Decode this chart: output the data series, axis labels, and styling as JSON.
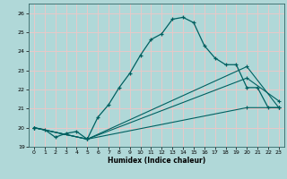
{
  "title": "",
  "xlabel": "Humidex (Indice chaleur)",
  "bg_color": "#b0d8d8",
  "grid_color": "#e8c8c8",
  "line_color": "#006060",
  "xlim": [
    -0.5,
    23.5
  ],
  "ylim": [
    19,
    26.5
  ],
  "xticks": [
    0,
    1,
    2,
    3,
    4,
    5,
    6,
    7,
    8,
    9,
    10,
    11,
    12,
    13,
    14,
    15,
    16,
    17,
    18,
    19,
    20,
    21,
    22,
    23
  ],
  "yticks": [
    19,
    20,
    21,
    22,
    23,
    24,
    25,
    26
  ],
  "line1_x": [
    0,
    1,
    2,
    3,
    4,
    5,
    6,
    7,
    8,
    9,
    10,
    11,
    12,
    13,
    14,
    15,
    16,
    17,
    18,
    19,
    20,
    21,
    22,
    23
  ],
  "line1_y": [
    20.0,
    19.9,
    19.5,
    19.7,
    19.8,
    19.4,
    20.55,
    21.2,
    22.1,
    22.85,
    23.8,
    24.62,
    24.92,
    25.68,
    25.78,
    25.5,
    24.3,
    23.65,
    23.3,
    23.3,
    22.1,
    22.1,
    21.05,
    21.05
  ],
  "line2_x": [
    0,
    5,
    20,
    23
  ],
  "line2_y": [
    20.0,
    19.4,
    21.05,
    21.05
  ],
  "line3_x": [
    0,
    5,
    20,
    23
  ],
  "line3_y": [
    20.0,
    19.4,
    22.6,
    21.4
  ],
  "line4_x": [
    0,
    5,
    20,
    23
  ],
  "line4_y": [
    20.0,
    19.4,
    23.2,
    21.05
  ]
}
